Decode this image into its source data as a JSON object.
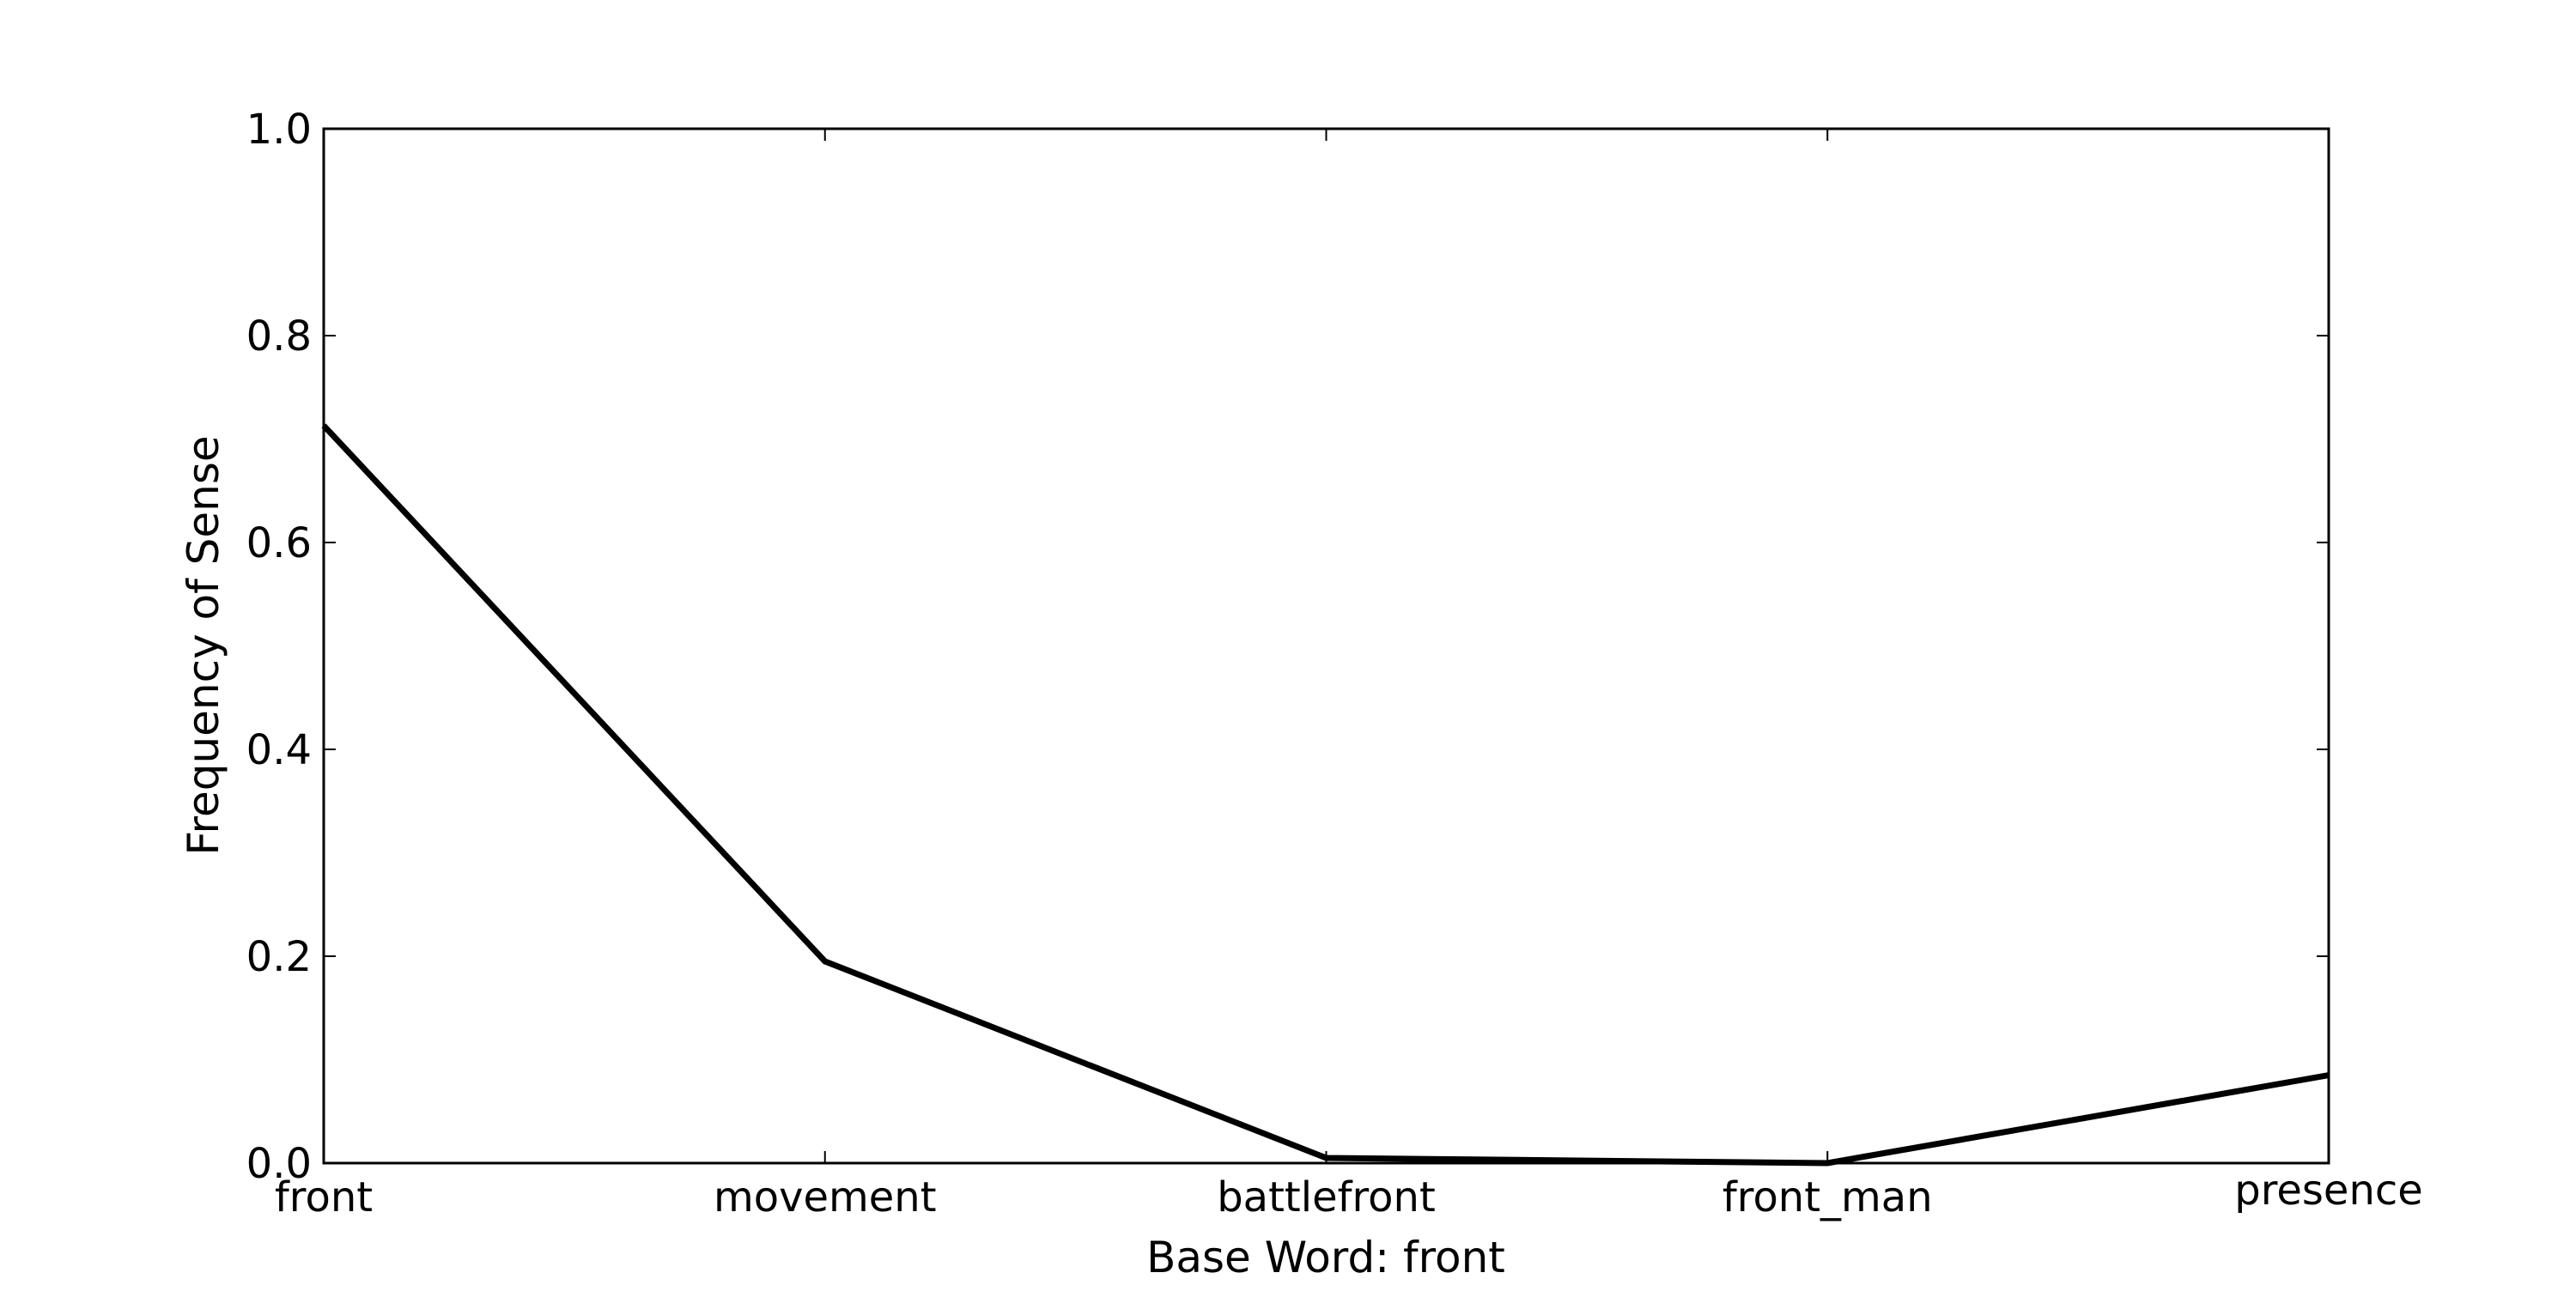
{
  "chart_data": {
    "type": "line",
    "categories": [
      "front",
      "movement",
      "battlefront",
      "front_man",
      "presence"
    ],
    "series": [
      {
        "values": [
          0.713,
          0.195,
          0.005,
          0.0,
          0.085
        ]
      }
    ],
    "xlabel": "Base Word: front",
    "ylabel": "Frequency of Sense",
    "ylim": [
      0.0,
      1.0
    ],
    "yticks": [
      "0.0",
      "0.2",
      "0.4",
      "0.6",
      "0.8",
      "1.0"
    ],
    "grid": false,
    "line_color": "#000000"
  }
}
